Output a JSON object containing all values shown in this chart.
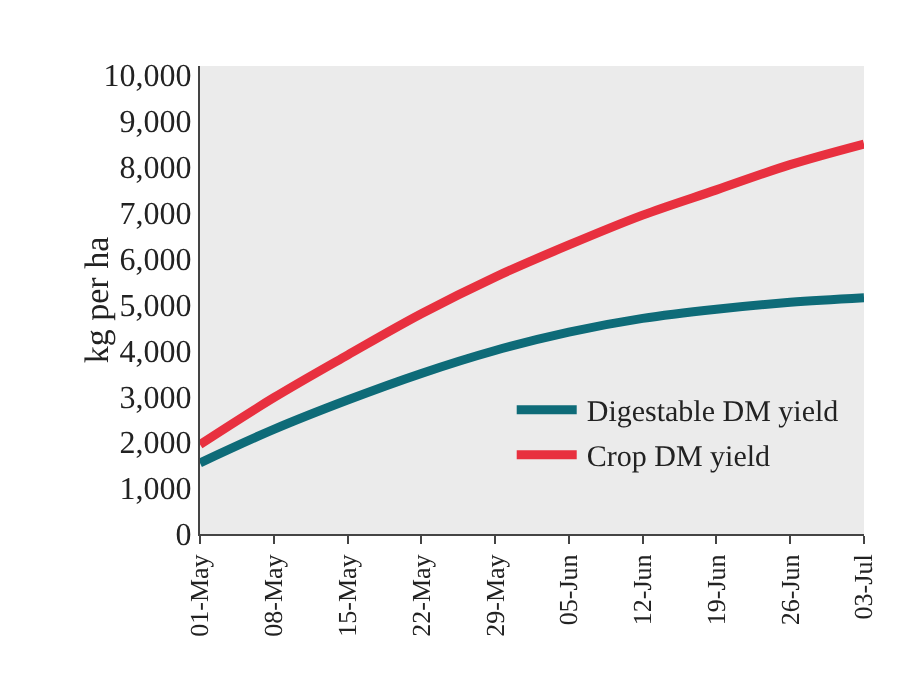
{
  "chart_data": {
    "type": "line",
    "ylabel": "kg per ha",
    "categories": [
      "01-May",
      "08-May",
      "15-May",
      "22-May",
      "29-May",
      "05-Jun",
      "12-Jun",
      "19-Jun",
      "26-Jun",
      "03-Jul"
    ],
    "series": [
      {
        "name": "Digestable DM yield",
        "color": "#0e6b78",
        "values": [
          1550,
          2280,
          2920,
          3500,
          4000,
          4400,
          4700,
          4900,
          5050,
          5150
        ]
      },
      {
        "name": "Crop DM yield",
        "color": "#e8303f",
        "values": [
          1950,
          2970,
          3900,
          4800,
          5600,
          6300,
          6950,
          7500,
          8050,
          8500
        ]
      }
    ],
    "ylim": [
      0,
      10200
    ],
    "yticks": [
      {
        "value": 0,
        "label": "0"
      },
      {
        "value": 1000,
        "label": "1,000"
      },
      {
        "value": 2000,
        "label": "2,000"
      },
      {
        "value": 3000,
        "label": "3,000"
      },
      {
        "value": 4000,
        "label": "4,000"
      },
      {
        "value": 5000,
        "label": "5,000"
      },
      {
        "value": 6000,
        "label": "6,000"
      },
      {
        "value": 7000,
        "label": "7,000"
      },
      {
        "value": 8000,
        "label": "8,000"
      },
      {
        "value": 9000,
        "label": "9,000"
      },
      {
        "value": 10000,
        "label": "10,000"
      }
    ],
    "grid": false,
    "legend": "bottom right",
    "marker": "none",
    "line_style": "solid"
  }
}
